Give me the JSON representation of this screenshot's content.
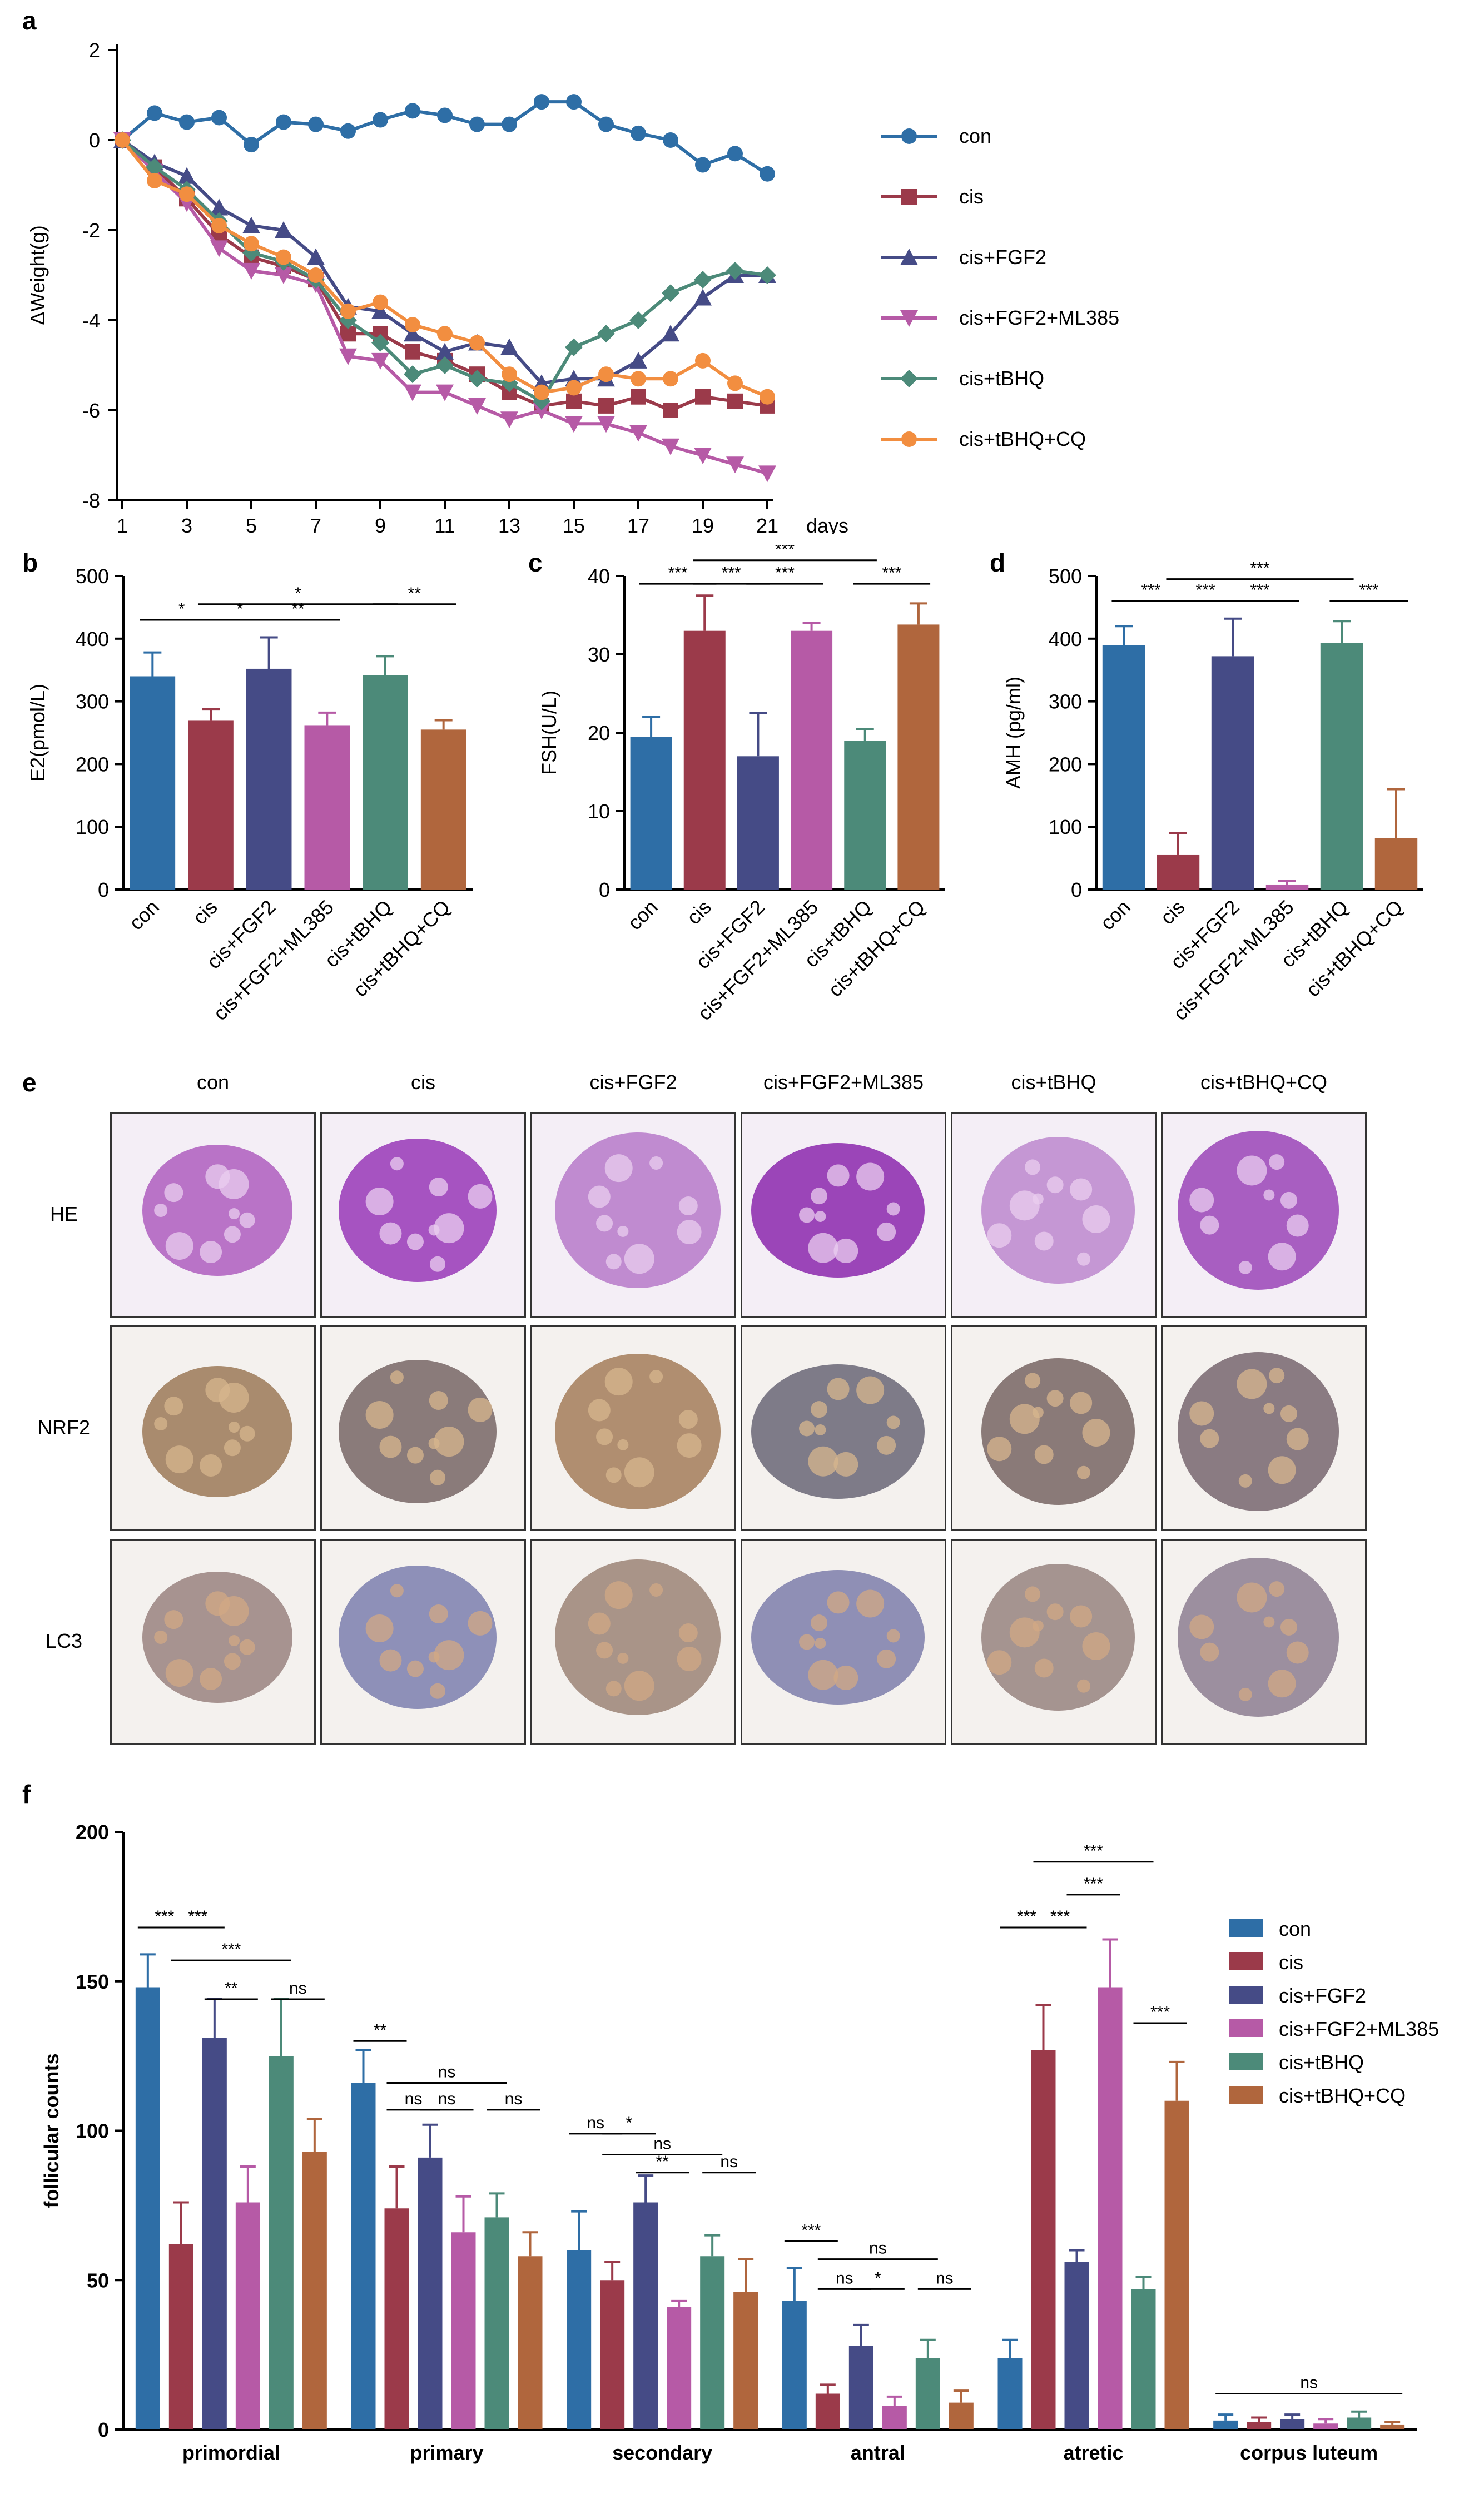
{
  "chart_data": [
    {
      "panel": "a",
      "type": "line",
      "ylabel": "ΔWeight(g)",
      "xlabel": "days",
      "xticks": [
        1,
        3,
        5,
        7,
        9,
        11,
        13,
        15,
        17,
        19,
        21
      ],
      "yticks": [
        2,
        0,
        -2,
        -4,
        -6,
        -8
      ],
      "ylim": [
        -8,
        2
      ],
      "xlim": [
        1,
        21
      ],
      "x": [
        1,
        2,
        3,
        4,
        5,
        6,
        7,
        8,
        9,
        10,
        11,
        12,
        13,
        14,
        15,
        16,
        17,
        18,
        19,
        20,
        21
      ],
      "series": [
        {
          "name": "con",
          "color": "#2e6ea6",
          "marker": "circle",
          "values": [
            0,
            0.6,
            0.4,
            0.5,
            -0.1,
            0.4,
            0.35,
            0.2,
            0.45,
            0.65,
            0.55,
            0.35,
            0.35,
            0.85,
            0.85,
            0.35,
            0.15,
            0,
            -0.55,
            -0.3,
            -0.75
          ]
        },
        {
          "name": "cis",
          "color": "#9b3a4a",
          "marker": "square",
          "values": [
            0,
            -0.6,
            -1.3,
            -2.1,
            -2.6,
            -2.8,
            -3.1,
            -4.3,
            -4.3,
            -4.7,
            -4.9,
            -5.2,
            -5.6,
            -5.9,
            -5.8,
            -5.9,
            -5.7,
            -6,
            -5.7,
            -5.8,
            -5.9
          ]
        },
        {
          "name": "cis+FGF2",
          "color": "#454b86",
          "marker": "triangle-up",
          "values": [
            0,
            -0.5,
            -0.8,
            -1.5,
            -1.9,
            -2,
            -2.6,
            -3.7,
            -3.8,
            -4.3,
            -4.7,
            -4.5,
            -4.6,
            -5.4,
            -5.3,
            -5.3,
            -4.9,
            -4.3,
            -3.5,
            -3,
            -3
          ]
        },
        {
          "name": "cis+FGF2+ML385",
          "color": "#b65aa6",
          "marker": "triangle-down",
          "values": [
            0,
            -0.7,
            -1.4,
            -2.4,
            -2.9,
            -3,
            -3.2,
            -4.8,
            -4.9,
            -5.6,
            -5.6,
            -5.9,
            -6.2,
            -6,
            -6.3,
            -6.3,
            -6.5,
            -6.8,
            -7,
            -7.2,
            -7.4
          ]
        },
        {
          "name": "cis+tBHQ",
          "color": "#4c8a79",
          "marker": "diamond",
          "values": [
            0,
            -0.6,
            -1.1,
            -1.8,
            -2.5,
            -2.7,
            -3.1,
            -4,
            -4.5,
            -5.2,
            -5,
            -5.3,
            -5.4,
            -5.8,
            -4.6,
            -4.3,
            -4,
            -3.4,
            -3.1,
            -2.9,
            -3
          ]
        },
        {
          "name": "cis+tBHQ+CQ",
          "color": "#f28e40",
          "marker": "circle",
          "values": [
            0,
            -0.9,
            -1.2,
            -1.9,
            -2.3,
            -2.6,
            -3,
            -3.8,
            -3.6,
            -4.1,
            -4.3,
            -4.5,
            -5.2,
            -5.6,
            -5.5,
            -5.2,
            -5.3,
            -5.3,
            -4.9,
            -5.4,
            -5.7
          ]
        }
      ]
    },
    {
      "panel": "b",
      "type": "bar",
      "ylabel": "E2(pmol/L)",
      "ylim": [
        0,
        500
      ],
      "yticks": [
        0,
        100,
        200,
        300,
        400,
        500
      ],
      "categories": [
        "con",
        "cis",
        "cis+FGF2",
        "cis+FGF2+ML385",
        "cis+tBHQ",
        "cis+tBHQ+CQ"
      ],
      "values": [
        340,
        270,
        352,
        262,
        342,
        255
      ],
      "errors": [
        38,
        18,
        50,
        20,
        30,
        15
      ],
      "significance": [
        {
          "from": 0,
          "to": 1,
          "label": "*",
          "y": 430
        },
        {
          "from": 1,
          "to": 2,
          "label": "*",
          "y": 430
        },
        {
          "from": 1,
          "to": 4,
          "label": "*",
          "y": 455
        },
        {
          "from": 2,
          "to": 3,
          "label": "**",
          "y": 430
        },
        {
          "from": 4,
          "to": 5,
          "label": "**",
          "y": 455
        }
      ]
    },
    {
      "panel": "c",
      "type": "bar",
      "ylabel": "FSH(U/L)",
      "ylim": [
        0,
        40
      ],
      "yticks": [
        0,
        10,
        20,
        30,
        40
      ],
      "categories": [
        "con",
        "cis",
        "cis+FGF2",
        "cis+FGF2+ML385",
        "cis+tBHQ",
        "cis+tBHQ+CQ"
      ],
      "values": [
        19.5,
        33,
        17,
        33,
        19,
        33.8
      ],
      "errors": [
        2.5,
        4.5,
        5.5,
        1,
        1.5,
        2.7
      ],
      "significance": [
        {
          "from": 0,
          "to": 1,
          "label": "***",
          "y": 39
        },
        {
          "from": 1,
          "to": 2,
          "label": "***",
          "y": 39
        },
        {
          "from": 1,
          "to": 4,
          "label": "***",
          "y": 42
        },
        {
          "from": 2,
          "to": 3,
          "label": "***",
          "y": 39
        },
        {
          "from": 4,
          "to": 5,
          "label": "***",
          "y": 39
        }
      ]
    },
    {
      "panel": "d",
      "type": "bar",
      "ylabel": "AMH (pg/ml)",
      "ylim": [
        0,
        500
      ],
      "yticks": [
        0,
        100,
        200,
        300,
        400,
        500
      ],
      "categories": [
        "con",
        "cis",
        "cis+FGF2",
        "cis+FGF2+ML385",
        "cis+tBHQ",
        "cis+tBHQ+CQ"
      ],
      "values": [
        390,
        55,
        372,
        8,
        393,
        82
      ],
      "errors": [
        30,
        35,
        60,
        6,
        35,
        78
      ],
      "significance": [
        {
          "from": 0,
          "to": 1,
          "label": "***",
          "y": 460
        },
        {
          "from": 1,
          "to": 2,
          "label": "***",
          "y": 460
        },
        {
          "from": 1,
          "to": 4,
          "label": "***",
          "y": 495
        },
        {
          "from": 2,
          "to": 3,
          "label": "***",
          "y": 460
        },
        {
          "from": 4,
          "to": 5,
          "label": "***",
          "y": 460
        }
      ]
    },
    {
      "panel": "f",
      "type": "bar",
      "ylabel": "follicular counts",
      "ylim": [
        0,
        200
      ],
      "yticks": [
        0,
        50,
        100,
        150,
        200
      ],
      "categories": [
        "primordial",
        "primary",
        "secondary",
        "antral",
        "atretic",
        "corpus luteum"
      ],
      "series": [
        {
          "name": "con",
          "color": "#2e6ea6",
          "values": [
            148,
            116,
            60,
            43,
            24,
            3
          ],
          "errors": [
            11,
            11,
            13,
            11,
            6,
            2
          ]
        },
        {
          "name": "cis",
          "color": "#9b3a4a",
          "values": [
            62,
            74,
            50,
            12,
            127,
            2.5
          ],
          "errors": [
            14,
            14,
            6,
            3,
            15,
            1.5
          ]
        },
        {
          "name": "cis+FGF2",
          "color": "#454b86",
          "values": [
            131,
            91,
            76,
            28,
            56,
            3.5
          ],
          "errors": [
            13,
            11,
            9,
            7,
            4,
            1.5
          ]
        },
        {
          "name": "cis+FGF2+ML385",
          "color": "#b65aa6",
          "values": [
            76,
            66,
            41,
            8,
            148,
            2
          ],
          "errors": [
            12,
            12,
            2,
            3,
            16,
            1.5
          ]
        },
        {
          "name": "cis+tBHQ",
          "color": "#4c8a79",
          "values": [
            125,
            71,
            58,
            24,
            47,
            4
          ],
          "errors": [
            19,
            8,
            7,
            6,
            4,
            2
          ]
        },
        {
          "name": "cis+tBHQ+CQ",
          "color": "#b0663d",
          "values": [
            93,
            58,
            46,
            9,
            110,
            1.5
          ],
          "errors": [
            11,
            8,
            11,
            4,
            13,
            1
          ]
        }
      ],
      "significance": [
        {
          "group": 0,
          "from": 0,
          "to": 1,
          "label": "***",
          "y": 168
        },
        {
          "group": 0,
          "from": 1,
          "to": 2,
          "label": "***",
          "y": 168
        },
        {
          "group": 0,
          "from": 1,
          "to": 4,
          "label": "***",
          "y": 157
        },
        {
          "group": 0,
          "from": 2,
          "to": 3,
          "label": "**",
          "y": 144
        },
        {
          "group": 0,
          "from": 4,
          "to": 5,
          "label": "ns",
          "y": 144
        },
        {
          "group": 1,
          "from": 0,
          "to": 1,
          "label": "**",
          "y": 130
        },
        {
          "group": 1,
          "from": 1,
          "to": 4,
          "label": "ns",
          "y": 116
        },
        {
          "group": 1,
          "from": 1,
          "to": 2,
          "label": "ns",
          "y": 107
        },
        {
          "group": 1,
          "from": 2,
          "to": 3,
          "label": "ns",
          "y": 107
        },
        {
          "group": 1,
          "from": 4,
          "to": 5,
          "label": "ns",
          "y": 107
        },
        {
          "group": 2,
          "from": 0,
          "to": 1,
          "label": "ns",
          "y": 99
        },
        {
          "group": 2,
          "from": 1,
          "to": 2,
          "label": "*",
          "y": 99
        },
        {
          "group": 2,
          "from": 1,
          "to": 4,
          "label": "ns",
          "y": 92
        },
        {
          "group": 2,
          "from": 2,
          "to": 3,
          "label": "**",
          "y": 86
        },
        {
          "group": 2,
          "from": 4,
          "to": 5,
          "label": "ns",
          "y": 86
        },
        {
          "group": 3,
          "from": 0,
          "to": 1,
          "label": "***",
          "y": 63
        },
        {
          "group": 3,
          "from": 1,
          "to": 4,
          "label": "ns",
          "y": 57
        },
        {
          "group": 3,
          "from": 1,
          "to": 2,
          "label": "ns",
          "y": 47
        },
        {
          "group": 3,
          "from": 2,
          "to": 3,
          "label": "*",
          "y": 47
        },
        {
          "group": 3,
          "from": 4,
          "to": 5,
          "label": "ns",
          "y": 47
        },
        {
          "group": 4,
          "from": 0,
          "to": 1,
          "label": "***",
          "y": 168
        },
        {
          "group": 4,
          "from": 1,
          "to": 2,
          "label": "***",
          "y": 168
        },
        {
          "group": 4,
          "from": 1,
          "to": 4,
          "label": "***",
          "y": 190
        },
        {
          "group": 4,
          "from": 2,
          "to": 3,
          "label": "***",
          "y": 179
        },
        {
          "group": 4,
          "from": 4,
          "to": 5,
          "label": "***",
          "y": 136
        },
        {
          "group": 5,
          "from": 0,
          "to": 5,
          "label": "ns",
          "y": 12
        }
      ]
    }
  ],
  "histology": {
    "panel": "e",
    "columns": [
      "con",
      "cis",
      "cis+FGF2",
      "cis+FGF2+ML385",
      "cis+tBHQ",
      "cis+tBHQ+CQ"
    ],
    "rows": [
      "HE",
      "NRF2",
      "LC3"
    ],
    "row_colors": [
      [
        "#b973c7",
        "#a653c1",
        "#c08bd0",
        "#9b45b8",
        "#c597d4",
        "#a85ec1"
      ],
      [
        "#a98b6e",
        "#8a7b7a",
        "#b08e70",
        "#7e7b88",
        "#8a7a78",
        "#8a7b82"
      ],
      [
        "#a79390",
        "#8e90b8",
        "#a99488",
        "#8f8fb5",
        "#a59490",
        "#9c8f9f"
      ]
    ]
  },
  "panel_letters": [
    "a",
    "b",
    "c",
    "d",
    "e",
    "f"
  ]
}
